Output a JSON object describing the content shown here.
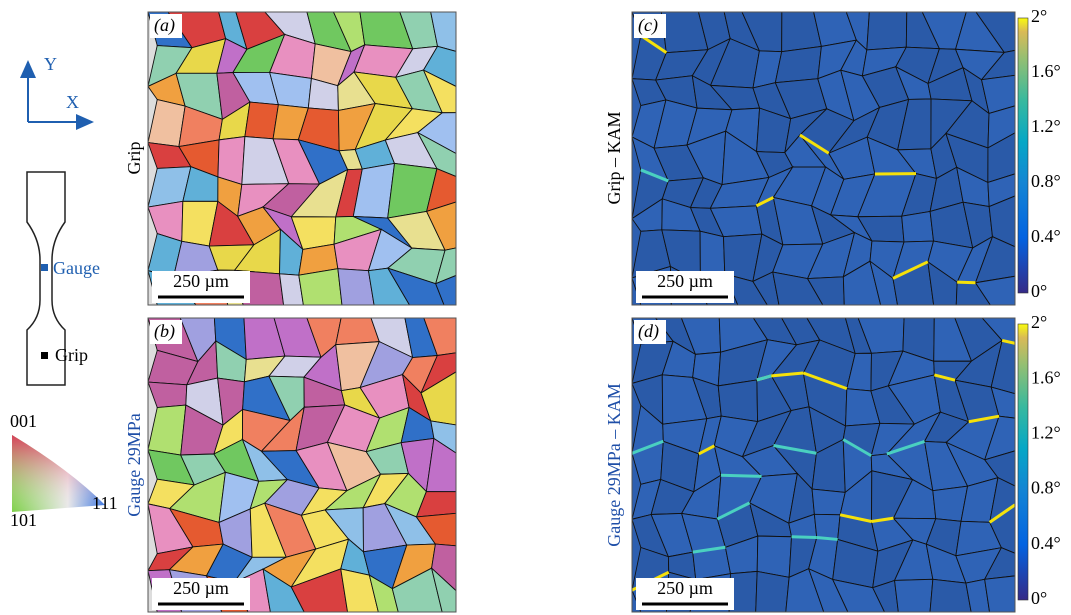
{
  "axes": {
    "y": "Y",
    "x": "X"
  },
  "specimen": {
    "gauge": "Gauge",
    "grip": "Grip"
  },
  "ipf": {
    "top": "001",
    "left": "101",
    "right": "111"
  },
  "rows": {
    "top": "Grip",
    "bottom": "Gauge 29MPa",
    "top_kam": "Grip – KAM",
    "bottom_kam": "Gauge 29MPa – KAM"
  },
  "panels": [
    {
      "label": "(a)",
      "scale_bar": "250 µm"
    },
    {
      "label": "(b)",
      "scale_bar": "250 µm"
    },
    {
      "label": "(c)",
      "scale_bar": "250 µm"
    },
    {
      "label": "(d)",
      "scale_bar": "250 µm"
    }
  ],
  "colorbar": {
    "ticks": [
      "2°",
      "1.6°",
      "1.2°",
      "0.8°",
      "0.4°",
      "0°"
    ]
  }
}
